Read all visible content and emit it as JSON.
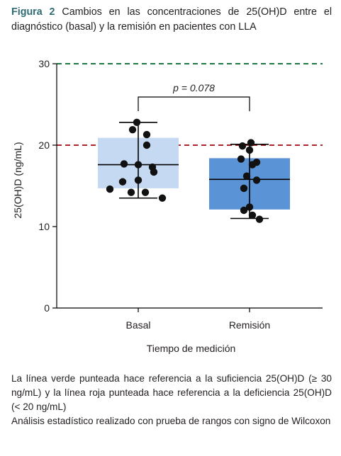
{
  "caption": {
    "label": "Figura 2",
    "text": " Cambios en las concentraciones de 25(OH)D entre el diagnóstico (basal) y la remisión en pacientes con LLA"
  },
  "notes": {
    "line1": "La línea verde punteada hace referencia a la suficiencia 25(OH)D (≥ 30 ng/mL) y la línea roja punteada hace referencia a la deficiencia 25(OH)D (< 20 ng/mL)",
    "line2": "Análisis estadístico realizado con prueba de rangos con signo de Wilcoxon"
  },
  "chart_data": {
    "type": "box",
    "xlabel": "Tiempo de medición",
    "ylabel": "25(OH)D (ng/mL)",
    "ylim": [
      0,
      30
    ],
    "yticks": [
      0,
      10,
      20,
      30
    ],
    "grid": false,
    "reference_lines": [
      {
        "value": 30,
        "color": "#1e7a45"
      },
      {
        "value": 20,
        "color": "#b0242c"
      }
    ],
    "annotation": {
      "text": "p = 0.078"
    },
    "groups": [
      {
        "name": "Basal",
        "box_color": "#c5daf2",
        "q1": 14.7,
        "median": 17.6,
        "q3": 20.9,
        "whisker_low": 13.5,
        "whisker_high": 22.8,
        "points": [
          {
            "x": -0.4,
            "y": 14.6
          },
          {
            "x": -0.22,
            "y": 15.5
          },
          {
            "x": -0.2,
            "y": 17.7
          },
          {
            "x": -0.1,
            "y": 14.2
          },
          {
            "x": -0.08,
            "y": 21.9
          },
          {
            "x": -0.02,
            "y": 22.8
          },
          {
            "x": 0.0,
            "y": 17.6
          },
          {
            "x": 0.0,
            "y": 15.7
          },
          {
            "x": 0.1,
            "y": 14.2
          },
          {
            "x": 0.12,
            "y": 21.3
          },
          {
            "x": 0.12,
            "y": 20.0
          },
          {
            "x": 0.2,
            "y": 17.3
          },
          {
            "x": 0.22,
            "y": 16.7
          },
          {
            "x": 0.34,
            "y": 13.5
          }
        ]
      },
      {
        "name": "Remisión",
        "box_color": "#5a93d6",
        "q1": 12.1,
        "median": 15.8,
        "q3": 18.4,
        "whisker_low": 11.0,
        "whisker_high": 20.1,
        "points": [
          {
            "x": -0.1,
            "y": 19.9
          },
          {
            "x": 0.02,
            "y": 20.3
          },
          {
            "x": 0.0,
            "y": 19.4
          },
          {
            "x": -0.12,
            "y": 18.3
          },
          {
            "x": 0.04,
            "y": 17.6
          },
          {
            "x": 0.1,
            "y": 17.9
          },
          {
            "x": -0.04,
            "y": 16.2
          },
          {
            "x": 0.1,
            "y": 15.7
          },
          {
            "x": -0.08,
            "y": 14.7
          },
          {
            "x": -0.08,
            "y": 12.0
          },
          {
            "x": 0.0,
            "y": 12.4
          },
          {
            "x": 0.04,
            "y": 11.4
          },
          {
            "x": 0.14,
            "y": 10.9
          }
        ]
      }
    ]
  }
}
